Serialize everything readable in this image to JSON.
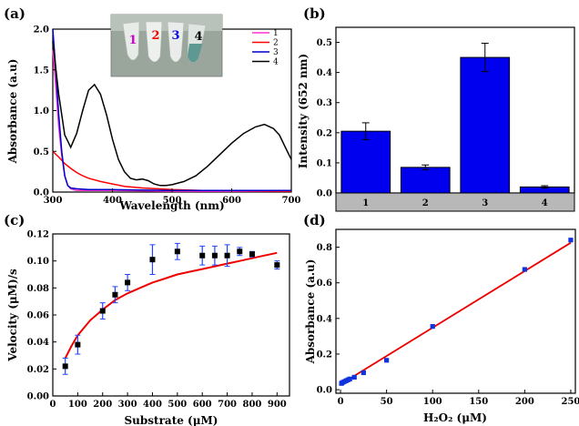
{
  "figure": {
    "panel_labels": [
      "(a)",
      "(b)",
      "(c)",
      "(d)"
    ],
    "inset_numbers": [
      {
        "text": "1",
        "color": "#cc00cc"
      },
      {
        "text": "2",
        "color": "#ee0000"
      },
      {
        "text": "3",
        "color": "#0000dd"
      },
      {
        "text": "4",
        "color": "#000000"
      }
    ]
  },
  "chart_data": [
    {
      "panel": "(a)",
      "type": "line",
      "xlabel": "Wavelength (nm)",
      "ylabel": "Absorbance (a.u)",
      "xlim": [
        300,
        700
      ],
      "ylim": [
        0,
        2.0
      ],
      "xticks": [
        300,
        400,
        500,
        600,
        700
      ],
      "yticks": [
        0.0,
        0.5,
        1.0,
        1.5,
        2.0
      ],
      "legend_position": "top-right",
      "series": [
        {
          "name": "1",
          "color": "#ff33cc",
          "x": [
            300,
            305,
            310,
            315,
            320,
            325,
            330,
            340,
            360,
            400,
            500,
            600,
            700
          ],
          "y": [
            1.75,
            1.3,
            0.8,
            0.45,
            0.2,
            0.08,
            0.04,
            0.02,
            0.02,
            0.02,
            0.01,
            0.01,
            0.01
          ]
        },
        {
          "name": "2",
          "color": "#ff0000",
          "x": [
            300,
            310,
            320,
            330,
            340,
            350,
            360,
            380,
            400,
            420,
            450,
            500,
            550,
            600,
            700
          ],
          "y": [
            0.5,
            0.43,
            0.35,
            0.29,
            0.24,
            0.2,
            0.17,
            0.13,
            0.1,
            0.07,
            0.05,
            0.03,
            0.02,
            0.02,
            0.01
          ]
        },
        {
          "name": "3",
          "color": "#0000cc",
          "x": [
            300,
            305,
            310,
            315,
            320,
            325,
            330,
            340,
            360,
            400,
            500,
            600,
            700
          ],
          "y": [
            2.0,
            1.5,
            0.95,
            0.5,
            0.2,
            0.08,
            0.05,
            0.04,
            0.03,
            0.03,
            0.02,
            0.02,
            0.02
          ]
        },
        {
          "name": "4",
          "color": "#000000",
          "x": [
            300,
            310,
            320,
            330,
            340,
            350,
            360,
            370,
            380,
            390,
            400,
            410,
            420,
            430,
            440,
            450,
            460,
            470,
            480,
            490,
            500,
            520,
            540,
            560,
            580,
            600,
            620,
            640,
            655,
            670,
            680,
            690,
            700
          ],
          "y": [
            1.85,
            1.2,
            0.7,
            0.55,
            0.72,
            1.0,
            1.25,
            1.32,
            1.2,
            0.95,
            0.65,
            0.4,
            0.25,
            0.17,
            0.15,
            0.16,
            0.14,
            0.1,
            0.08,
            0.08,
            0.09,
            0.13,
            0.2,
            0.32,
            0.46,
            0.6,
            0.72,
            0.8,
            0.83,
            0.78,
            0.7,
            0.55,
            0.4
          ]
        }
      ]
    },
    {
      "panel": "(b)",
      "type": "bar",
      "ylabel": "Intensity (652 nm)",
      "categories": [
        "1",
        "2",
        "3",
        "4"
      ],
      "values": [
        0.205,
        0.085,
        0.45,
        0.02
      ],
      "errors": [
        0.028,
        0.008,
        0.047,
        0.004
      ],
      "ylim": [
        0,
        0.55
      ],
      "yticks": [
        0.0,
        0.1,
        0.2,
        0.3,
        0.4,
        0.5
      ],
      "bar_color": "#0000ee"
    },
    {
      "panel": "(c)",
      "type": "scatter",
      "xlabel": "Substrate (μM)",
      "ylabel": "Velocity (μM)/s",
      "xlim": [
        0,
        950
      ],
      "ylim": [
        0,
        0.12
      ],
      "xticks": [
        0,
        100,
        200,
        300,
        400,
        500,
        600,
        700,
        800,
        900
      ],
      "yticks": [
        0.0,
        0.02,
        0.04,
        0.06,
        0.08,
        0.1,
        0.12
      ],
      "points": {
        "x": [
          50,
          100,
          200,
          250,
          300,
          400,
          500,
          600,
          650,
          700,
          750,
          800,
          900
        ],
        "y": [
          0.022,
          0.038,
          0.063,
          0.075,
          0.084,
          0.101,
          0.107,
          0.104,
          0.104,
          0.104,
          0.107,
          0.105,
          0.097
        ],
        "err": [
          0.006,
          0.007,
          0.006,
          0.006,
          0.006,
          0.011,
          0.006,
          0.007,
          0.007,
          0.008,
          0.003,
          0.002,
          0.003
        ]
      },
      "fit": {
        "color": "#ee0000",
        "x": [
          50,
          75,
          100,
          150,
          200,
          250,
          300,
          350,
          400,
          450,
          500,
          550,
          600,
          650,
          700,
          750,
          800,
          850,
          900
        ],
        "y": [
          0.028,
          0.037,
          0.045,
          0.056,
          0.064,
          0.071,
          0.076,
          0.08,
          0.084,
          0.087,
          0.09,
          0.092,
          0.094,
          0.096,
          0.098,
          0.1,
          0.102,
          0.104,
          0.106
        ]
      },
      "error_color": "#2244ff"
    },
    {
      "panel": "(d)",
      "type": "scatter",
      "xlabel": "H₂O₂ (μM)",
      "ylabel": "Absorbance (a.u)",
      "xlim": [
        -5,
        255
      ],
      "ylim": [
        -0.02,
        0.9
      ],
      "xticks": [
        0,
        50,
        100,
        150,
        200,
        250
      ],
      "yticks": [
        0.0,
        0.2,
        0.4,
        0.6,
        0.8
      ],
      "points": {
        "x": [
          1,
          2,
          4,
          6,
          8,
          10,
          15,
          25,
          50,
          100,
          200,
          250
        ],
        "y": [
          0.035,
          0.04,
          0.045,
          0.05,
          0.055,
          0.06,
          0.07,
          0.095,
          0.165,
          0.355,
          0.675,
          0.84
        ]
      },
      "fit": {
        "color": "#ee0000",
        "x": [
          0,
          250
        ],
        "y": [
          0.03,
          0.825
        ]
      },
      "point_color": "#1133dd"
    }
  ]
}
